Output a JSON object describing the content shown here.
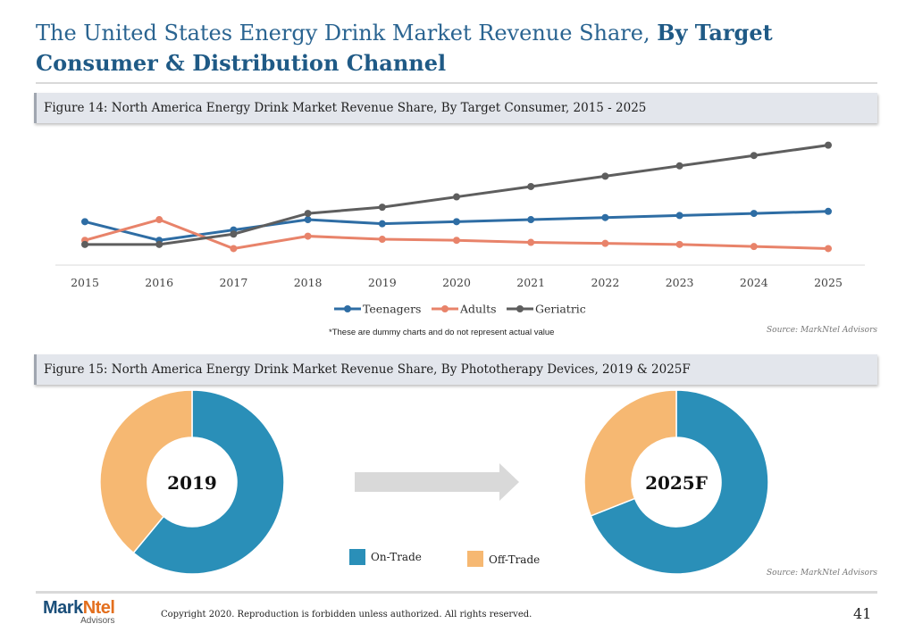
{
  "header": {
    "title_regular": "The United States Energy Drink Market Revenue Share, ",
    "title_bold": "By Target Consumer & Distribution Channel"
  },
  "figure14": {
    "caption": "Figure 14: North America Energy Drink Market Revenue Share, By Target Consumer, 2015 - 2025",
    "note": "*These are dummy charts and do not represent actual value",
    "source": "Source: MarkNtel Advisors"
  },
  "figure15": {
    "caption": "Figure 15: North America Energy Drink Market Revenue Share, By Phototherapy Devices, 2019 & 2025F",
    "source": "Source: MarkNtel Advisors",
    "legend": {
      "on_trade": "On-Trade",
      "off_trade": "Off-Trade"
    }
  },
  "chart_data": [
    {
      "type": "line",
      "title": "Figure 14: North America Energy Drink Market Revenue Share, By Target Consumer, 2015 - 2025",
      "x": [
        "2015",
        "2016",
        "2017",
        "2018",
        "2019",
        "2020",
        "2021",
        "2022",
        "2023",
        "2024",
        "2025"
      ],
      "series": [
        {
          "name": "Teenagers",
          "color": "#2e6da4",
          "values": [
            21,
            12,
            17,
            22,
            20,
            21,
            22,
            23,
            24,
            25,
            26
          ]
        },
        {
          "name": "Adults",
          "color": "#e8836a",
          "values": [
            12,
            22,
            8,
            14,
            12.5,
            12,
            11,
            10.5,
            10,
            9,
            8
          ]
        },
        {
          "name": "Geriatric",
          "color": "#5e5e5e",
          "values": [
            10,
            10,
            15,
            25,
            28,
            33,
            38,
            43,
            48,
            53,
            58
          ]
        }
      ],
      "ylim": [
        0,
        60
      ],
      "grid": false,
      "legend_position": "bottom"
    },
    {
      "type": "pie",
      "center_label": "2019",
      "categories": [
        "On-Trade",
        "Off-Trade"
      ],
      "values": [
        61,
        39
      ],
      "colors": [
        "#2a8fb8",
        "#f6b872"
      ]
    },
    {
      "type": "pie",
      "center_label": "2025F",
      "categories": [
        "On-Trade",
        "Off-Trade"
      ],
      "values": [
        69,
        31
      ],
      "colors": [
        "#2a8fb8",
        "#f6b872"
      ]
    }
  ],
  "footer": {
    "logo_main": "Mark",
    "logo_accent": "Ntel",
    "logo_sub": "Advisors",
    "copyright": "Copyright 2020. Reproduction is forbidden unless authorized. All rights reserved.",
    "page_number": "41"
  },
  "colors": {
    "accent": "#2a6491",
    "on_trade": "#2a8fb8",
    "off_trade": "#f6b872"
  }
}
